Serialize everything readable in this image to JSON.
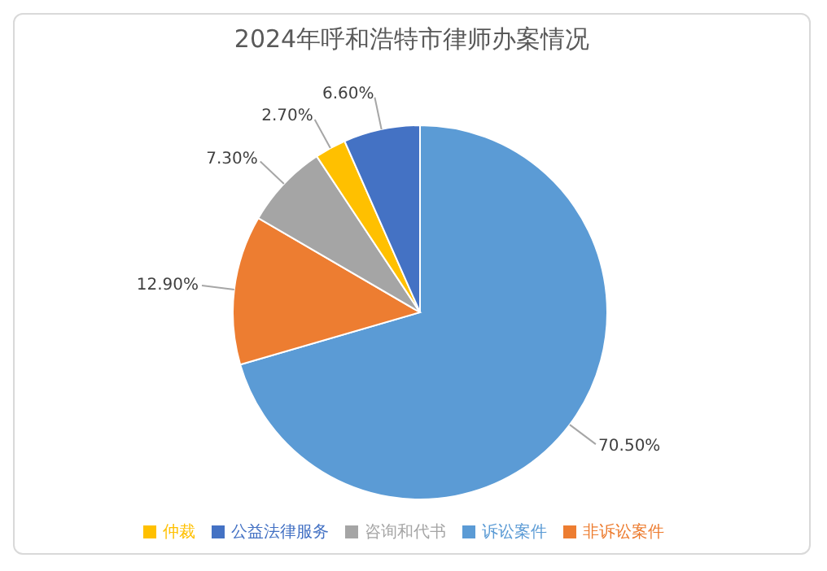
{
  "chart_data": {
    "type": "pie",
    "title": "2024年呼和浩特市律师办案情况",
    "categories": [
      "诉讼案件",
      "非诉讼案件",
      "咨询和代书",
      "仲裁",
      "公益法律服务"
    ],
    "values": [
      70.5,
      12.9,
      7.3,
      2.7,
      6.6
    ],
    "colors": [
      "#5b9bd5",
      "#ed7d31",
      "#a5a5a5",
      "#ffc000",
      "#4472c4"
    ],
    "value_labels": [
      "70.50%",
      "12.90%",
      "7.30%",
      "2.70%",
      "6.60%"
    ],
    "legend": "bottom"
  }
}
